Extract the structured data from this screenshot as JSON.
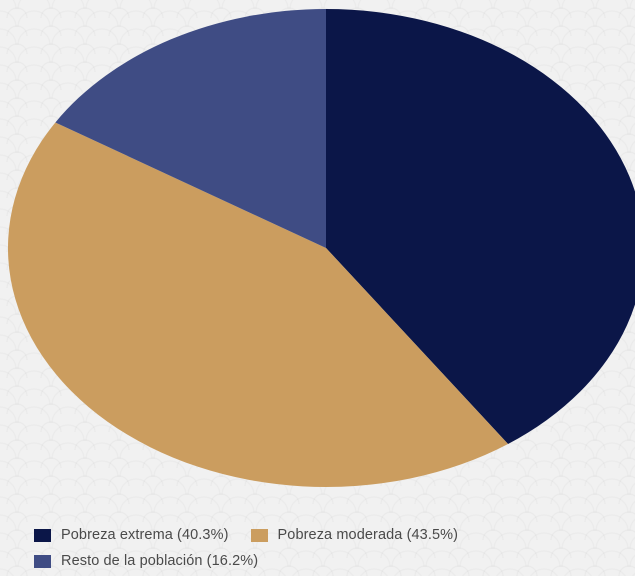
{
  "chart_data": {
    "type": "pie",
    "title": "",
    "slices": [
      {
        "label": "Pobreza extrema (40.3%)",
        "value": 40.3,
        "color": "#0b1648"
      },
      {
        "label": "Pobreza moderada (43.5%)",
        "value": 43.5,
        "color": "#cb9d5f"
      },
      {
        "label": "Resto de la población (16.2%)",
        "value": 16.2,
        "color": "#3f4c84"
      }
    ],
    "start_angle": "top, clockwise",
    "legend_position": "bottom"
  }
}
